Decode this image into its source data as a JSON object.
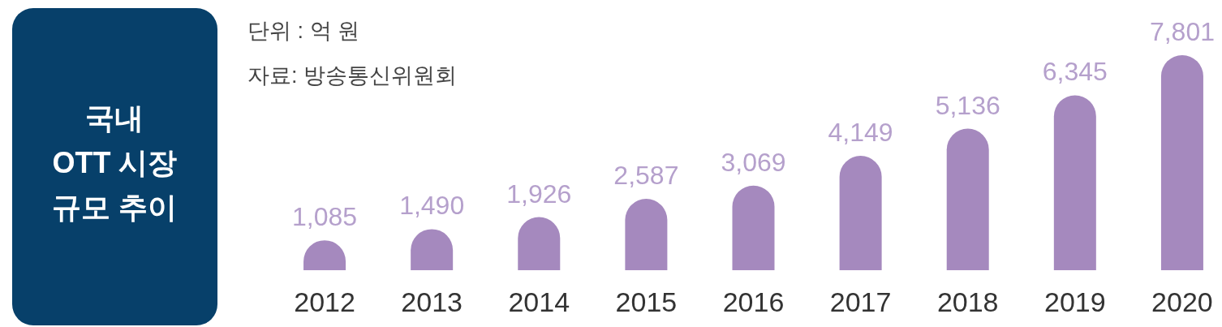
{
  "chart_data": {
    "type": "bar",
    "title": "국내\nOTT 시장\n규모 추이",
    "annotations": [
      "단위 : 억 원",
      "자료: 방송통신위원회"
    ],
    "categories": [
      "2012",
      "2013",
      "2014",
      "2015",
      "2016",
      "2017",
      "2018",
      "2019",
      "2020"
    ],
    "values": [
      1085,
      1490,
      1926,
      2587,
      3069,
      4149,
      5136,
      6345,
      7801
    ],
    "value_labels": [
      "1,085",
      "1,490",
      "1,926",
      "2,587",
      "3,069",
      "4,149",
      "5,136",
      "6,345",
      "7,801"
    ],
    "color": "#a589be"
  }
}
